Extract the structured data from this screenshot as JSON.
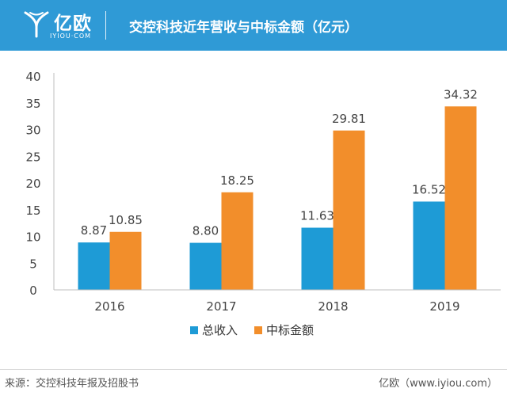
{
  "header": {
    "brand_name": "亿欧",
    "brand_sub": "IYIOU·COM",
    "title": "交控科技近年营收与中标金额（亿元）",
    "background": "#2f9ad6"
  },
  "chart_data": {
    "type": "bar",
    "categories": [
      "2016",
      "2017",
      "2018",
      "2019"
    ],
    "series": [
      {
        "name": "总收入",
        "values": [
          8.87,
          8.8,
          11.63,
          16.52
        ],
        "labels": [
          "8.87",
          "8.80",
          "11.63",
          "16.52"
        ],
        "color": "#1e9bd6"
      },
      {
        "name": "中标金额",
        "values": [
          10.85,
          18.25,
          29.81,
          34.32
        ],
        "labels": [
          "10.85",
          "18.25",
          "29.81",
          "34.32"
        ],
        "color": "#f28e2b"
      }
    ],
    "ylim": [
      0,
      40
    ],
    "yticks": [
      "0",
      "5",
      "10",
      "15",
      "20",
      "25",
      "30",
      "35",
      "40"
    ],
    "grid": false,
    "legend_position": "bottom"
  },
  "footer": {
    "source": "来源：交控科技年报及招股书",
    "credit": "亿欧（www.iyiou.com）"
  }
}
